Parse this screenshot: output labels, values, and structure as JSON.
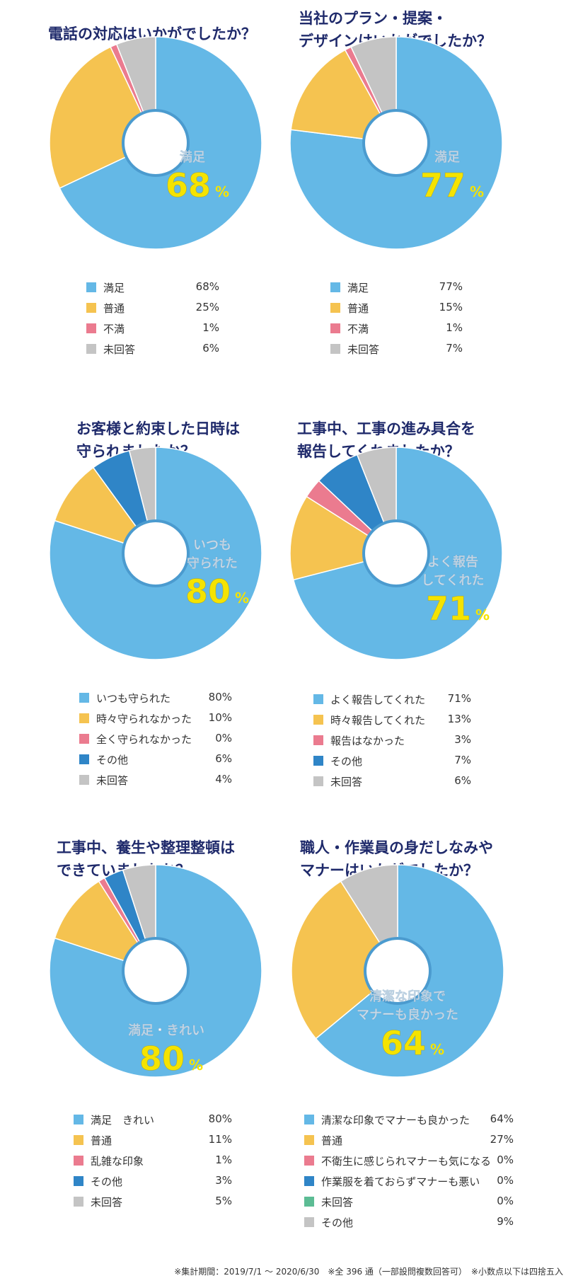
{
  "colors": {
    "blue": "#64b8e6",
    "yellow": "#f5c350",
    "pink": "#eb7b8f",
    "dark_blue": "#2f85c7",
    "gray": "#c4c4c4",
    "green": "#5cbc94",
    "title": "#1f2a6b",
    "center_label": "#ffffff",
    "center_pct": "#f5e300"
  },
  "chart_data": [
    {
      "type": "pie",
      "title": [
        "電話の対応はいかがでしたか？"
      ],
      "center_label": [
        "満足"
      ],
      "center_value": "68",
      "center_unit": "%",
      "series": [
        {
          "name": "満足",
          "value": 68,
          "display": "68%",
          "color": "#64b8e6"
        },
        {
          "name": "普通",
          "value": 25,
          "display": "25%",
          "color": "#f5c350"
        },
        {
          "name": "不満",
          "value": 1,
          "display": "1%",
          "color": "#eb7b8f"
        },
        {
          "name": "未回答",
          "value": 6,
          "display": "6%",
          "color": "#c4c4c4"
        }
      ]
    },
    {
      "type": "pie",
      "title": [
        "当社のプラン・提案・",
        "デザインはいかがでしたか？"
      ],
      "center_label": [
        "満足"
      ],
      "center_value": "77",
      "center_unit": "%",
      "series": [
        {
          "name": "満足",
          "value": 77,
          "display": "77%",
          "color": "#64b8e6"
        },
        {
          "name": "普通",
          "value": 15,
          "display": "15%",
          "color": "#f5c350"
        },
        {
          "name": "不満",
          "value": 1,
          "display": "1%",
          "color": "#eb7b8f"
        },
        {
          "name": "未回答",
          "value": 7,
          "display": "7%",
          "color": "#c4c4c4"
        }
      ]
    },
    {
      "type": "pie",
      "title": [
        "お客様と約束した日時は",
        "守られましたか？"
      ],
      "center_label": [
        "いつも",
        "守られた"
      ],
      "center_value": "80",
      "center_unit": "%",
      "series": [
        {
          "name": "いつも守られた",
          "value": 80,
          "display": "80%",
          "color": "#64b8e6"
        },
        {
          "name": "時々守られなかった",
          "value": 10,
          "display": "10%",
          "color": "#f5c350"
        },
        {
          "name": "全く守られなかった",
          "value": 0,
          "display": "0%",
          "color": "#eb7b8f"
        },
        {
          "name": "その他",
          "value": 6,
          "display": "6%",
          "color": "#2f85c7"
        },
        {
          "name": "未回答",
          "value": 4,
          "display": "4%",
          "color": "#c4c4c4"
        }
      ]
    },
    {
      "type": "pie",
      "title": [
        "工事中、工事の進み具合を",
        "報告してくれましたか？"
      ],
      "center_label": [
        "よく報告",
        "してくれた"
      ],
      "center_value": "71",
      "center_unit": "%",
      "series": [
        {
          "name": "よく報告してくれた",
          "value": 71,
          "display": "71%",
          "color": "#64b8e6"
        },
        {
          "name": "時々報告してくれた",
          "value": 13,
          "display": "13%",
          "color": "#f5c350"
        },
        {
          "name": "報告はなかった",
          "value": 3,
          "display": "3%",
          "color": "#eb7b8f"
        },
        {
          "name": "その他",
          "value": 7,
          "display": "7%",
          "color": "#2f85c7"
        },
        {
          "name": "未回答",
          "value": 6,
          "display": "6%",
          "color": "#c4c4c4"
        }
      ]
    },
    {
      "type": "pie",
      "title": [
        "工事中、養生や整理整頓は",
        "できていましたか？"
      ],
      "center_label": [
        "満足・きれい"
      ],
      "center_value": "80",
      "center_unit": "%",
      "series": [
        {
          "name": "満足　きれい",
          "value": 80,
          "display": "80%",
          "color": "#64b8e6"
        },
        {
          "name": "普通",
          "value": 11,
          "display": "11%",
          "color": "#f5c350"
        },
        {
          "name": "乱雑な印象",
          "value": 1,
          "display": "1%",
          "color": "#eb7b8f"
        },
        {
          "name": "その他",
          "value": 3,
          "display": "3%",
          "color": "#2f85c7"
        },
        {
          "name": "未回答",
          "value": 5,
          "display": "5%",
          "color": "#c4c4c4"
        }
      ]
    },
    {
      "type": "pie",
      "title": [
        "職人・作業員の身だしなみや",
        "マナーはいかがでしたか？"
      ],
      "center_label": [
        "清潔な印象で",
        "マナーも良かった"
      ],
      "center_value": "64",
      "center_unit": "%",
      "series": [
        {
          "name": "清潔な印象でマナーも良かった",
          "value": 64,
          "display": "64%",
          "color": "#64b8e6"
        },
        {
          "name": "普通",
          "value": 27,
          "display": "27%",
          "color": "#f5c350"
        },
        {
          "name": "不衛生に感じられマナーも気になる",
          "value": 0,
          "display": "0%",
          "color": "#eb7b8f"
        },
        {
          "name": "作業服を着ておらずマナーも悪い",
          "value": 0,
          "display": "0%",
          "color": "#2f85c7"
        },
        {
          "name": "未回答",
          "value": 0,
          "display": "0%",
          "color": "#5cbc94"
        },
        {
          "name": "その他",
          "value": 9,
          "display": "9%",
          "color": "#c4c4c4"
        }
      ]
    }
  ],
  "footnote": "※集計期間：2019/7/1 ～ 2020/6/30　※全 396 通（一部設問複数回答可）　※小数点以下は四捨五入"
}
